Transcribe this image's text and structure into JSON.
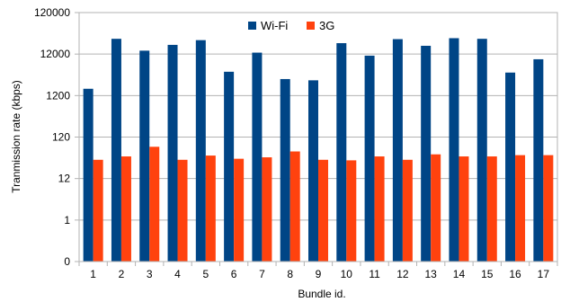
{
  "chart_data": {
    "type": "bar",
    "scale": "log",
    "xlabel": "Bundle id.",
    "ylabel": "Tranmission rate (kbps)",
    "yticks": [
      {
        "value": 0.1,
        "label": "0"
      },
      {
        "value": 1,
        "label": "1"
      },
      {
        "value": 12,
        "label": "12"
      },
      {
        "value": 120,
        "label": "120"
      },
      {
        "value": 1200,
        "label": "1200"
      },
      {
        "value": 12000,
        "label": "12000"
      },
      {
        "value": 120000,
        "label": "120000"
      }
    ],
    "categories": [
      "1",
      "2",
      "3",
      "4",
      "5",
      "6",
      "7",
      "8",
      "9",
      "10",
      "11",
      "12",
      "13",
      "14",
      "15",
      "16",
      "17"
    ],
    "grid": true,
    "legend_position": "top-center",
    "series": [
      {
        "name": "Wi-Fi",
        "color": "#004586",
        "values": [
          1750,
          28000,
          14500,
          20000,
          26000,
          4500,
          13000,
          3000,
          2800,
          22000,
          11000,
          27500,
          19000,
          29000,
          28000,
          4300,
          9000
        ]
      },
      {
        "name": "3G",
        "color": "#ff420e",
        "values": [
          34,
          41,
          70,
          34,
          43,
          36,
          39,
          54,
          34,
          33,
          41,
          34,
          46,
          41,
          41,
          44,
          44
        ]
      }
    ]
  }
}
